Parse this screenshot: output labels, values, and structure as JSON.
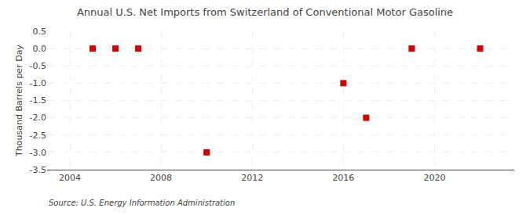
{
  "chart_data": {
    "type": "scatter",
    "title": "Annual U.S. Net Imports from Switzerland of Conventional Motor Gasoline",
    "ylabel": "Thousand Barrels per Day",
    "annotations": [
      "Source: U.S. Energy Information Administration"
    ],
    "x": [
      2005,
      2006,
      2007,
      2010,
      2016,
      2017,
      2019,
      2022
    ],
    "values": [
      0.0,
      0.0,
      0.0,
      -3.0,
      -1.0,
      -2.0,
      0.0,
      0.0
    ],
    "color": "#cc0000",
    "marker": "square",
    "xlim": [
      2003.0,
      2023.5
    ],
    "ylim": [
      -3.5,
      0.5
    ],
    "xticks": [
      2004,
      2008,
      2012,
      2016,
      2020
    ],
    "yticks": [
      0.5,
      {
        "value": 0.0,
        "label": "0.0"
      },
      -0.5,
      {
        "value": -1.0,
        "label": "-1.0"
      },
      -1.5,
      {
        "value": -2.0,
        "label": "-2.0"
      },
      -2.5,
      {
        "value": -3.0,
        "label": "-3.0"
      },
      -3.5
    ],
    "grid": true
  }
}
